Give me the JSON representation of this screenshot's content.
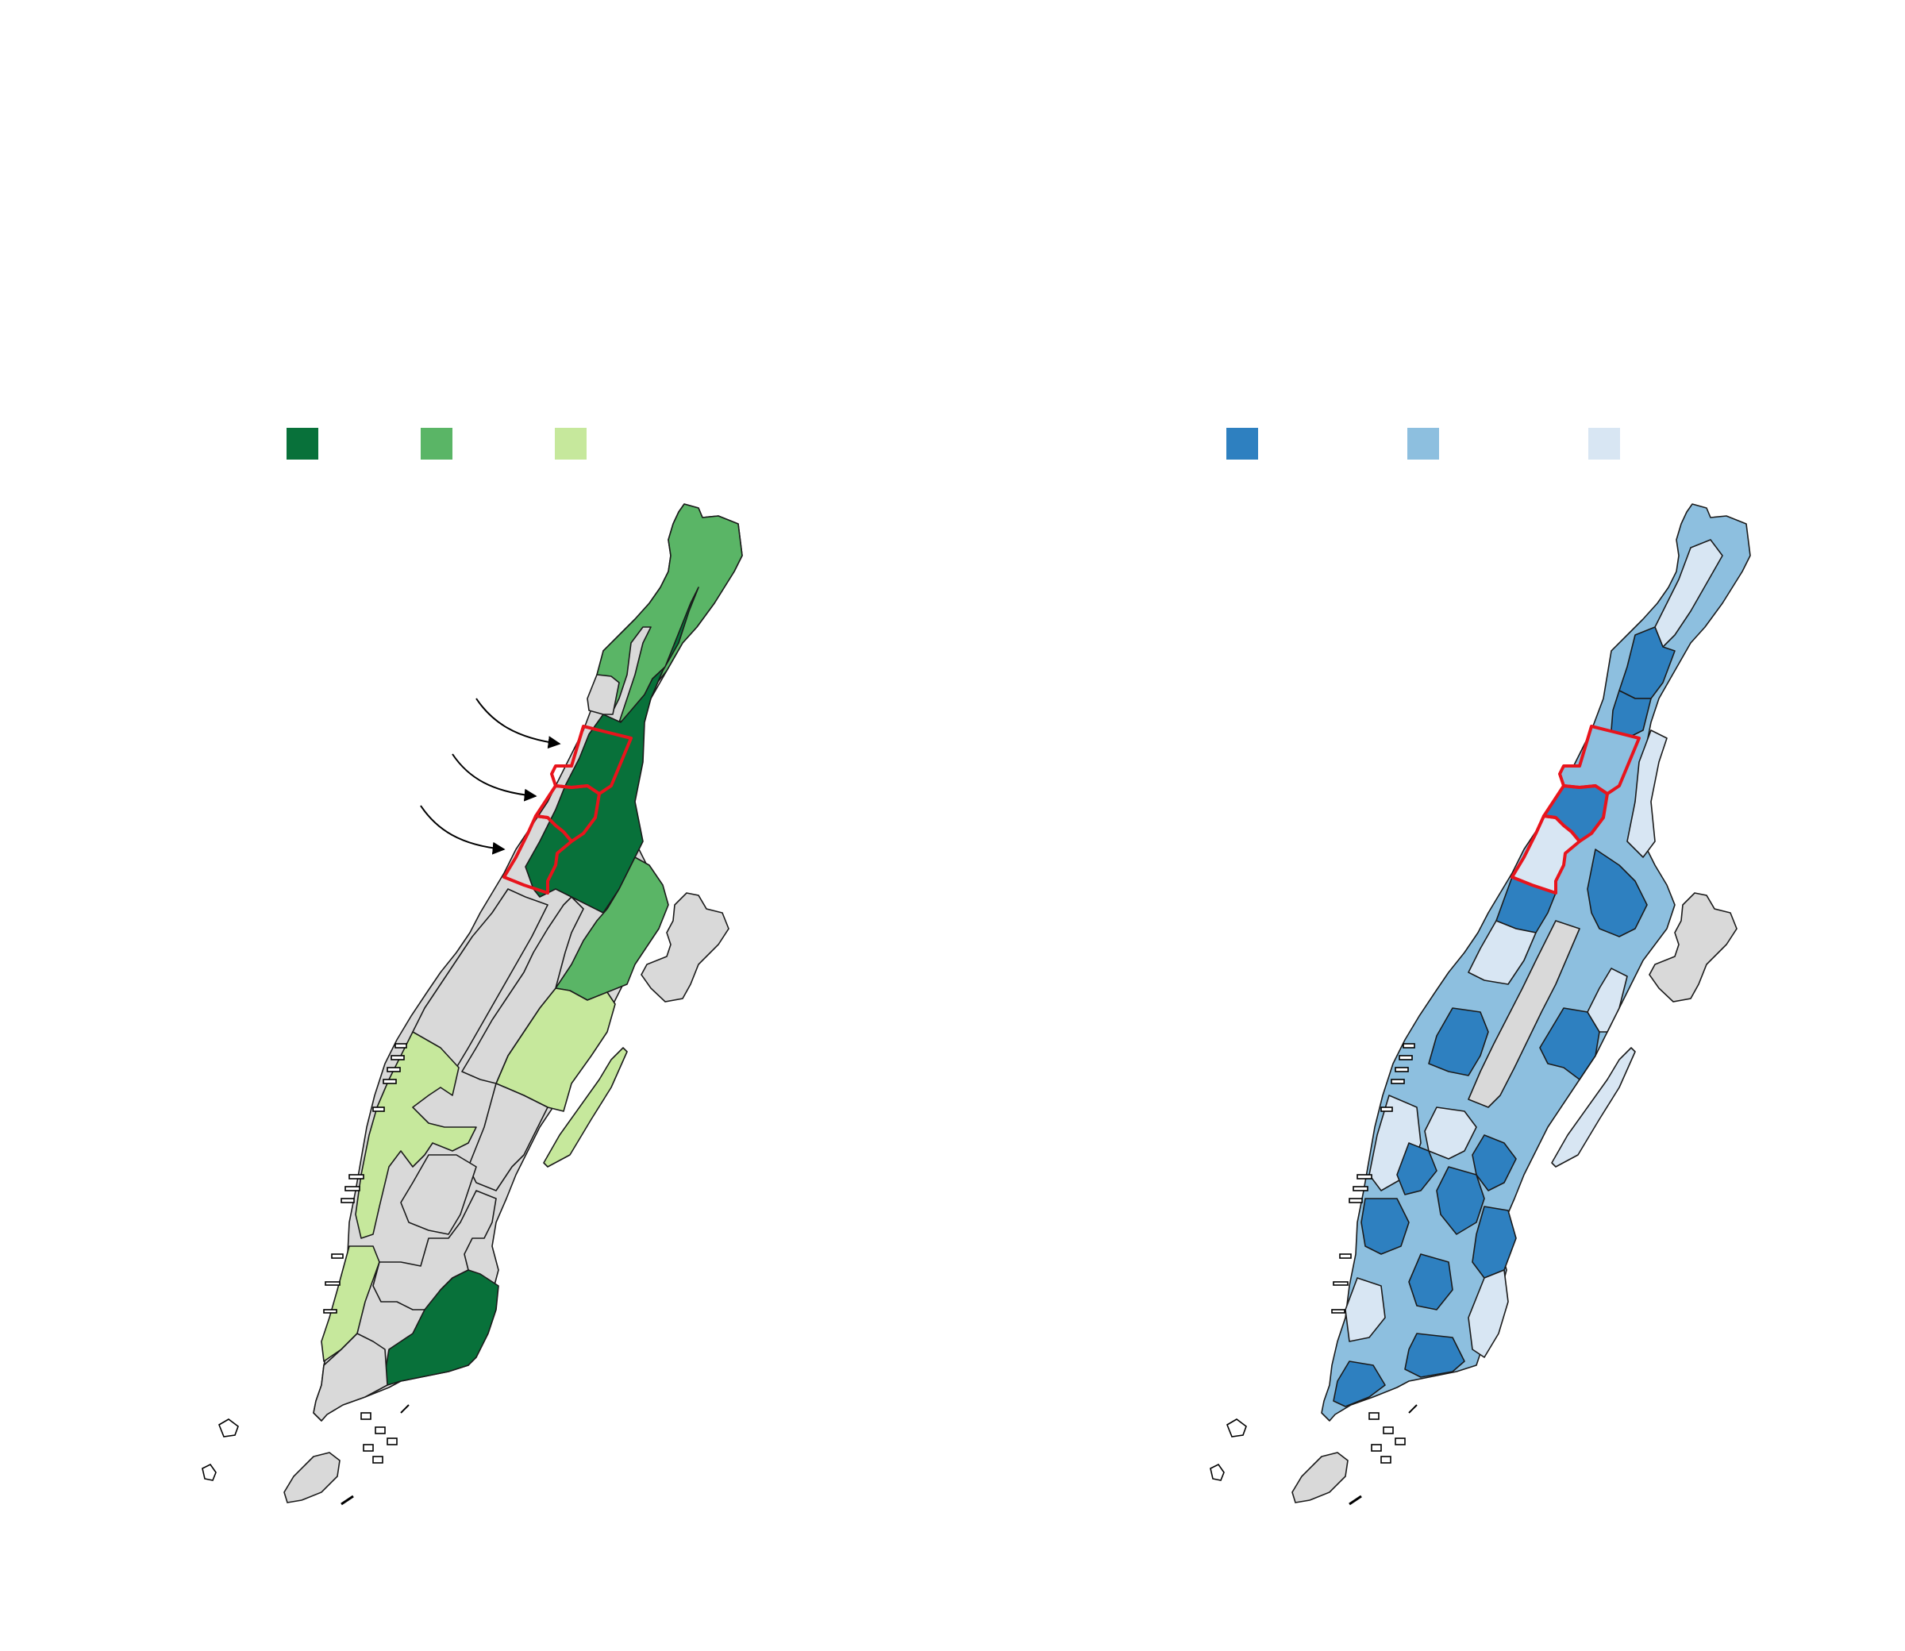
{
  "maps": [
    {
      "id": "left-map",
      "palette": "green",
      "legend": [
        {
          "color": "#08713a",
          "label": ""
        },
        {
          "color": "#5ab566",
          "label": ""
        },
        {
          "color": "#c6e89c",
          "label": ""
        }
      ],
      "annotation_arrows": 3
    },
    {
      "id": "right-map",
      "palette": "blue",
      "legend": [
        {
          "color": "#2e80c0",
          "label": ""
        },
        {
          "color": "#8dbfdf",
          "label": ""
        },
        {
          "color": "#d8e6f3",
          "label": ""
        }
      ],
      "annotation_arrows": 0
    }
  ],
  "colors": {
    "no_data": "#d9d9d9",
    "highlight_outline": "#e8141c",
    "border": "#1a1a1a"
  }
}
